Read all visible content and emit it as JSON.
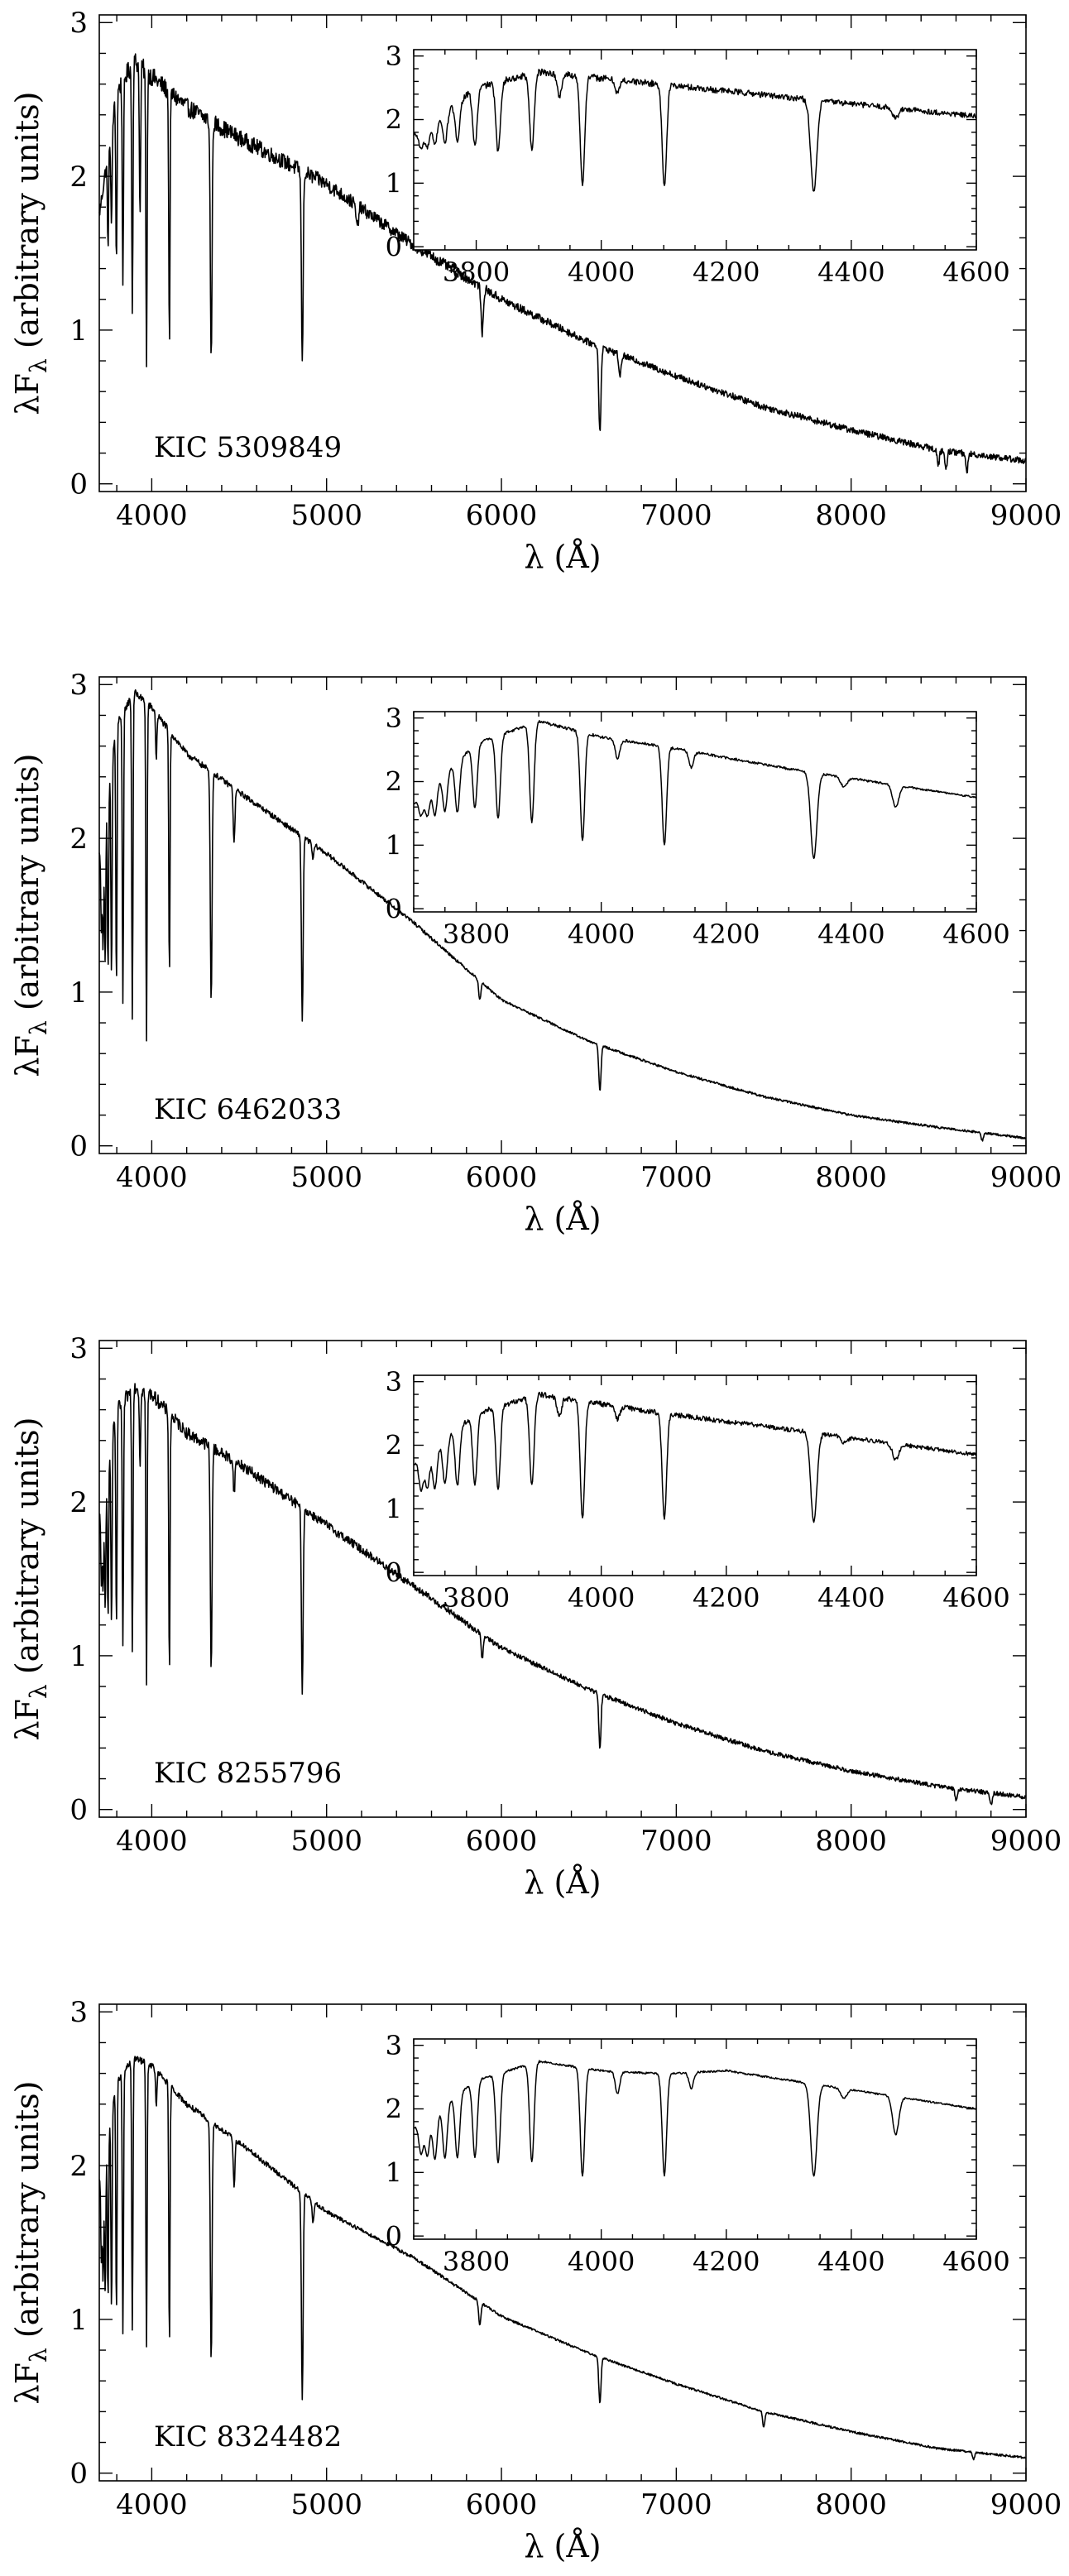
{
  "chart_data": [
    {
      "type": "line",
      "label": "KIC 5309849",
      "xlabel": "λ (Å)",
      "ylabel_main": "λF",
      "ylabel_sub": "λ",
      "ylabel_rest": " (arbitrary units)",
      "xlim": [
        3700,
        9000
      ],
      "ylim": [
        -0.05,
        3.05
      ],
      "xticks": [
        4000,
        5000,
        6000,
        7000,
        8000,
        9000
      ],
      "yticks": [
        0,
        1,
        2,
        3
      ],
      "grid": false,
      "continuum": {
        "x": [
          3700,
          3800,
          3900,
          4000,
          4200,
          4500,
          5000,
          5500,
          6000,
          6500,
          7000,
          7500,
          8000,
          8500,
          9000
        ],
        "y": [
          1.75,
          2.55,
          2.75,
          2.65,
          2.45,
          2.25,
          1.95,
          1.55,
          1.2,
          0.92,
          0.7,
          0.5,
          0.35,
          0.22,
          0.15
        ]
      },
      "lines": [
        {
          "wavelength": 3750,
          "depth": 0.6
        },
        {
          "wavelength": 3770,
          "depth": 0.65
        },
        {
          "wavelength": 3798,
          "depth": 1.1
        },
        {
          "wavelength": 3835,
          "depth": 1.3
        },
        {
          "wavelength": 3889,
          "depth": 1.6
        },
        {
          "wavelength": 3933,
          "depth": 1.0
        },
        {
          "wavelength": 3970,
          "depth": 1.9
        },
        {
          "wavelength": 4101,
          "depth": 1.65
        },
        {
          "wavelength": 4340,
          "depth": 1.55
        },
        {
          "wavelength": 4861,
          "depth": 1.25
        },
        {
          "wavelength": 5175,
          "depth": 0.15
        },
        {
          "wavelength": 5890,
          "depth": 0.3
        },
        {
          "wavelength": 6563,
          "depth": 0.55
        },
        {
          "wavelength": 6678,
          "depth": 0.15
        },
        {
          "wavelength": 8498,
          "depth": 0.1
        },
        {
          "wavelength": 8542,
          "depth": 0.12
        },
        {
          "wavelength": 8662,
          "depth": 0.12
        }
      ],
      "noise": 0.06,
      "inset": {
        "xlim": [
          3700,
          4600
        ],
        "ylim": [
          -0.05,
          3.1
        ],
        "xticks": [
          3800,
          4000,
          4200,
          4400,
          4600
        ],
        "yticks": [
          0,
          1,
          2,
          3
        ],
        "continuum": {
          "x": [
            3700,
            3800,
            3900,
            4000,
            4100,
            4300,
            4600
          ],
          "y": [
            1.75,
            2.5,
            2.75,
            2.65,
            2.55,
            2.35,
            2.05
          ]
        },
        "lines": [
          {
            "wavelength": 3712,
            "depth": 0.3
          },
          {
            "wavelength": 3722,
            "depth": 0.35
          },
          {
            "wavelength": 3734,
            "depth": 0.4
          },
          {
            "wavelength": 3750,
            "depth": 0.5
          },
          {
            "wavelength": 3770,
            "depth": 0.6
          },
          {
            "wavelength": 3798,
            "depth": 0.9
          },
          {
            "wavelength": 3835,
            "depth": 1.1
          },
          {
            "wavelength": 3889,
            "depth": 1.2
          },
          {
            "wavelength": 3933,
            "depth": 0.35
          },
          {
            "wavelength": 3970,
            "depth": 1.7
          },
          {
            "wavelength": 4026,
            "depth": 0.2
          },
          {
            "wavelength": 4101,
            "depth": 1.6
          },
          {
            "wavelength": 4340,
            "depth": 1.45
          },
          {
            "wavelength": 4471,
            "depth": 0.15
          }
        ],
        "noise": 0.05
      }
    },
    {
      "type": "line",
      "label": "KIC 6462033",
      "xlabel": "λ (Å)",
      "ylabel_main": "λF",
      "ylabel_sub": "λ",
      "ylabel_rest": " (arbitrary units)",
      "xlim": [
        3700,
        9000
      ],
      "ylim": [
        -0.05,
        3.05
      ],
      "xticks": [
        4000,
        5000,
        6000,
        7000,
        8000,
        9000
      ],
      "yticks": [
        0,
        1,
        2,
        3
      ],
      "grid": false,
      "continuum": {
        "x": [
          3700,
          3800,
          3900,
          4000,
          4200,
          4500,
          5000,
          5500,
          6000,
          6500,
          7000,
          7500,
          8000,
          8500,
          9000
        ],
        "y": [
          1.9,
          2.75,
          2.95,
          2.85,
          2.55,
          2.3,
          1.9,
          1.45,
          0.95,
          0.68,
          0.48,
          0.32,
          0.2,
          0.12,
          0.05
        ]
      },
      "lines": [
        {
          "wavelength": 3712,
          "depth": 0.6
        },
        {
          "wavelength": 3722,
          "depth": 0.8
        },
        {
          "wavelength": 3734,
          "depth": 1.0
        },
        {
          "wavelength": 3750,
          "depth": 1.2
        },
        {
          "wavelength": 3770,
          "depth": 1.4
        },
        {
          "wavelength": 3798,
          "depth": 1.7
        },
        {
          "wavelength": 3835,
          "depth": 1.9
        },
        {
          "wavelength": 3889,
          "depth": 2.1
        },
        {
          "wavelength": 3970,
          "depth": 2.2
        },
        {
          "wavelength": 4026,
          "depth": 0.3
        },
        {
          "wavelength": 4101,
          "depth": 1.6
        },
        {
          "wavelength": 4340,
          "depth": 1.5
        },
        {
          "wavelength": 4471,
          "depth": 0.35
        },
        {
          "wavelength": 4861,
          "depth": 1.2
        },
        {
          "wavelength": 4922,
          "depth": 0.1
        },
        {
          "wavelength": 5876,
          "depth": 0.12
        },
        {
          "wavelength": 6563,
          "depth": 0.3
        },
        {
          "wavelength": 8750,
          "depth": 0.05
        }
      ],
      "noise": 0.02,
      "inset": {
        "xlim": [
          3700,
          4600
        ],
        "ylim": [
          -0.05,
          3.1
        ],
        "xticks": [
          3800,
          4000,
          4200,
          4400,
          4600
        ],
        "yticks": [
          0,
          1,
          2,
          3
        ],
        "continuum": {
          "x": [
            3700,
            3800,
            3900,
            4000,
            4100,
            4300,
            4600
          ],
          "y": [
            1.65,
            2.6,
            2.95,
            2.7,
            2.55,
            2.2,
            1.75
          ]
        },
        "lines": [
          {
            "wavelength": 3712,
            "depth": 0.3
          },
          {
            "wavelength": 3722,
            "depth": 0.4
          },
          {
            "wavelength": 3734,
            "depth": 0.5
          },
          {
            "wavelength": 3750,
            "depth": 0.6
          },
          {
            "wavelength": 3770,
            "depth": 0.8
          },
          {
            "wavelength": 3798,
            "depth": 1.0
          },
          {
            "wavelength": 3835,
            "depth": 1.3
          },
          {
            "wavelength": 3889,
            "depth": 1.55
          },
          {
            "wavelength": 3970,
            "depth": 1.7
          },
          {
            "wavelength": 4026,
            "depth": 0.3
          },
          {
            "wavelength": 4101,
            "depth": 1.55
          },
          {
            "wavelength": 4144,
            "depth": 0.25
          },
          {
            "wavelength": 4340,
            "depth": 1.35
          },
          {
            "wavelength": 4388,
            "depth": 0.15
          },
          {
            "wavelength": 4471,
            "depth": 0.35
          }
        ],
        "noise": 0.02
      }
    },
    {
      "type": "line",
      "label": "KIC 8255796",
      "xlabel": "λ (Å)",
      "ylabel_main": "λF",
      "ylabel_sub": "λ",
      "ylabel_rest": " (arbitrary units)",
      "xlim": [
        3700,
        9000
      ],
      "ylim": [
        -0.05,
        3.05
      ],
      "xticks": [
        4000,
        5000,
        6000,
        7000,
        8000,
        9000
      ],
      "yticks": [
        0,
        1,
        2,
        3
      ],
      "grid": false,
      "continuum": {
        "x": [
          3700,
          3800,
          3900,
          4000,
          4200,
          4500,
          5000,
          5500,
          6000,
          6500,
          7000,
          7500,
          8000,
          8500,
          9000
        ],
        "y": [
          1.9,
          2.6,
          2.75,
          2.7,
          2.45,
          2.25,
          1.85,
          1.45,
          1.05,
          0.78,
          0.56,
          0.38,
          0.25,
          0.15,
          0.08
        ]
      },
      "lines": [
        {
          "wavelength": 3712,
          "depth": 0.5
        },
        {
          "wavelength": 3722,
          "depth": 0.65
        },
        {
          "wavelength": 3734,
          "depth": 0.85
        },
        {
          "wavelength": 3750,
          "depth": 1.0
        },
        {
          "wavelength": 3770,
          "depth": 1.2
        },
        {
          "wavelength": 3798,
          "depth": 1.4
        },
        {
          "wavelength": 3835,
          "depth": 1.6
        },
        {
          "wavelength": 3889,
          "depth": 1.7
        },
        {
          "wavelength": 3933,
          "depth": 0.5
        },
        {
          "wavelength": 3970,
          "depth": 1.9
        },
        {
          "wavelength": 4101,
          "depth": 1.7
        },
        {
          "wavelength": 4340,
          "depth": 1.45
        },
        {
          "wavelength": 4471,
          "depth": 0.2
        },
        {
          "wavelength": 4861,
          "depth": 1.2
        },
        {
          "wavelength": 5890,
          "depth": 0.15
        },
        {
          "wavelength": 6563,
          "depth": 0.35
        },
        {
          "wavelength": 8600,
          "depth": 0.08
        },
        {
          "wavelength": 8800,
          "depth": 0.08
        }
      ],
      "noise": 0.04,
      "inset": {
        "xlim": [
          3700,
          4600
        ],
        "ylim": [
          -0.05,
          3.1
        ],
        "xticks": [
          3800,
          4000,
          4200,
          4400,
          4600
        ],
        "yticks": [
          0,
          1,
          2,
          3
        ],
        "continuum": {
          "x": [
            3700,
            3800,
            3900,
            4000,
            4100,
            4300,
            4600
          ],
          "y": [
            1.7,
            2.5,
            2.8,
            2.65,
            2.5,
            2.25,
            1.85
          ]
        },
        "lines": [
          {
            "wavelength": 3712,
            "depth": 0.5
          },
          {
            "wavelength": 3722,
            "depth": 0.55
          },
          {
            "wavelength": 3734,
            "depth": 0.65
          },
          {
            "wavelength": 3750,
            "depth": 0.7
          },
          {
            "wavelength": 3770,
            "depth": 0.9
          },
          {
            "wavelength": 3798,
            "depth": 1.1
          },
          {
            "wavelength": 3835,
            "depth": 1.3
          },
          {
            "wavelength": 3889,
            "depth": 1.4
          },
          {
            "wavelength": 3933,
            "depth": 0.3
          },
          {
            "wavelength": 3970,
            "depth": 1.85
          },
          {
            "wavelength": 4026,
            "depth": 0.2
          },
          {
            "wavelength": 4101,
            "depth": 1.65
          },
          {
            "wavelength": 4340,
            "depth": 1.4
          },
          {
            "wavelength": 4388,
            "depth": 0.1
          },
          {
            "wavelength": 4471,
            "depth": 0.25
          }
        ],
        "noise": 0.04
      }
    },
    {
      "type": "line",
      "label": "KIC 8324482",
      "xlabel": "λ (Å)",
      "ylabel_main": "λF",
      "ylabel_sub": "λ",
      "ylabel_rest": " (arbitrary units)",
      "xlim": [
        3700,
        9000
      ],
      "ylim": [
        -0.05,
        3.05
      ],
      "xticks": [
        4000,
        5000,
        6000,
        7000,
        8000,
        9000
      ],
      "yticks": [
        0,
        1,
        2,
        3
      ],
      "grid": false,
      "continuum": {
        "x": [
          3700,
          3800,
          3900,
          4000,
          4200,
          4500,
          5000,
          5500,
          6000,
          6500,
          7000,
          7500,
          8000,
          8500,
          9000
        ],
        "y": [
          1.9,
          2.55,
          2.7,
          2.65,
          2.4,
          2.15,
          1.7,
          1.4,
          1.02,
          0.78,
          0.58,
          0.4,
          0.27,
          0.16,
          0.1
        ]
      },
      "lines": [
        {
          "wavelength": 3712,
          "depth": 0.6
        },
        {
          "wavelength": 3722,
          "depth": 0.8
        },
        {
          "wavelength": 3734,
          "depth": 0.95
        },
        {
          "wavelength": 3750,
          "depth": 1.1
        },
        {
          "wavelength": 3770,
          "depth": 1.3
        },
        {
          "wavelength": 3798,
          "depth": 1.5
        },
        {
          "wavelength": 3835,
          "depth": 1.7
        },
        {
          "wavelength": 3889,
          "depth": 1.75
        },
        {
          "wavelength": 3970,
          "depth": 1.85
        },
        {
          "wavelength": 4026,
          "depth": 0.25
        },
        {
          "wavelength": 4101,
          "depth": 1.7
        },
        {
          "wavelength": 4340,
          "depth": 1.55
        },
        {
          "wavelength": 4471,
          "depth": 0.3
        },
        {
          "wavelength": 4861,
          "depth": 1.35
        },
        {
          "wavelength": 4922,
          "depth": 0.15
        },
        {
          "wavelength": 5876,
          "depth": 0.15
        },
        {
          "wavelength": 6563,
          "depth": 0.3
        },
        {
          "wavelength": 7500,
          "depth": 0.1
        },
        {
          "wavelength": 8700,
          "depth": 0.05
        }
      ],
      "noise": 0.02,
      "inset": {
        "xlim": [
          3700,
          4600
        ],
        "ylim": [
          -0.05,
          3.1
        ],
        "xticks": [
          3800,
          4000,
          4200,
          4400,
          4600
        ],
        "yticks": [
          0,
          1,
          2,
          3
        ],
        "continuum": {
          "x": [
            3700,
            3800,
            3900,
            4000,
            4100,
            4200,
            4300,
            4600
          ],
          "y": [
            1.7,
            2.45,
            2.75,
            2.6,
            2.55,
            2.6,
            2.45,
            2.0
          ]
        },
        "lines": [
          {
            "wavelength": 3712,
            "depth": 0.5
          },
          {
            "wavelength": 3722,
            "depth": 0.6
          },
          {
            "wavelength": 3734,
            "depth": 0.75
          },
          {
            "wavelength": 3750,
            "depth": 0.85
          },
          {
            "wavelength": 3770,
            "depth": 1.0
          },
          {
            "wavelength": 3798,
            "depth": 1.2
          },
          {
            "wavelength": 3835,
            "depth": 1.4
          },
          {
            "wavelength": 3889,
            "depth": 1.55
          },
          {
            "wavelength": 3970,
            "depth": 1.7
          },
          {
            "wavelength": 4026,
            "depth": 0.35
          },
          {
            "wavelength": 4101,
            "depth": 1.6
          },
          {
            "wavelength": 4144,
            "depth": 0.25
          },
          {
            "wavelength": 4340,
            "depth": 1.45
          },
          {
            "wavelength": 4388,
            "depth": 0.15
          },
          {
            "wavelength": 4471,
            "depth": 0.6
          }
        ],
        "noise": 0.015
      }
    }
  ]
}
